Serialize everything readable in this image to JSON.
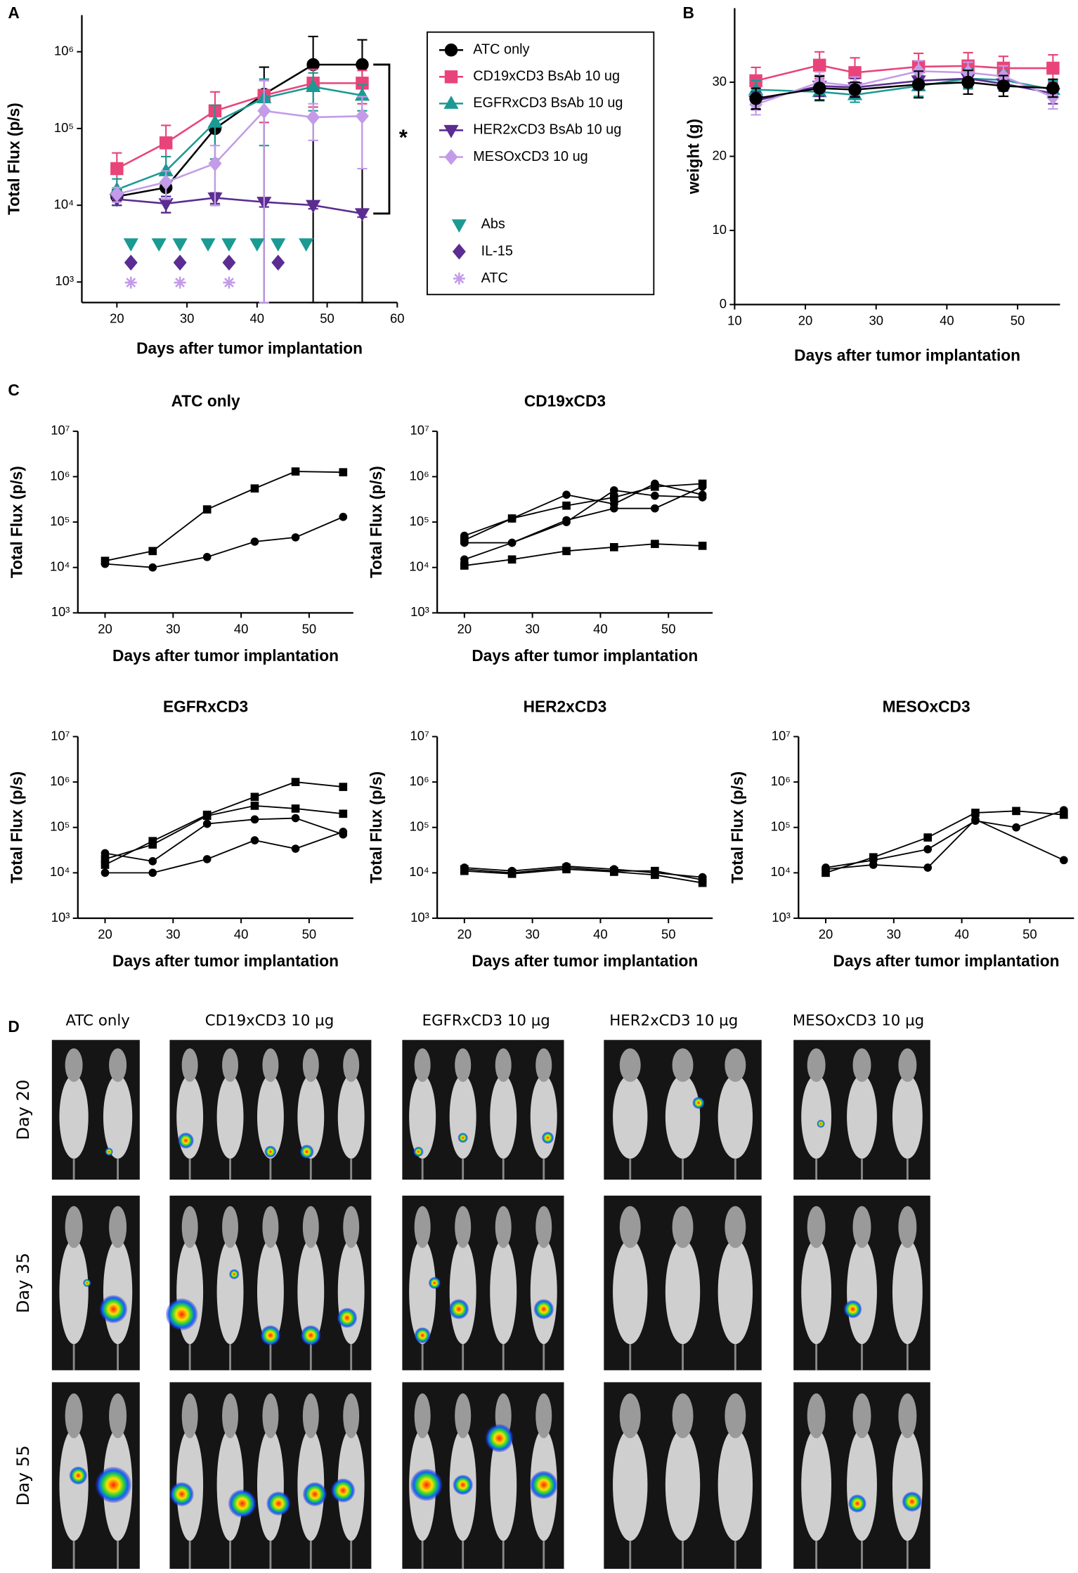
{
  "chart_data": [
    {
      "panel": "A",
      "type": "line",
      "x_label": "Days after tumor implantation",
      "y_label": "Total Flux (p/s)",
      "log_y": true,
      "xlim": [
        15,
        60
      ],
      "xticks": [
        20,
        30,
        40,
        50,
        60
      ],
      "ylim": [
        540,
        3000000
      ],
      "yticks": [
        {
          "value": 1000,
          "label": "10³"
        },
        {
          "value": 10000,
          "label": "10⁴"
        },
        {
          "value": 100000,
          "label": "10⁵"
        },
        {
          "value": 1000000,
          "label": "10⁶"
        }
      ],
      "annotation": "*",
      "legend": "right",
      "series": [
        {
          "name": "ATC only",
          "color": "#000000",
          "marker": "circle",
          "x": [
            20,
            27,
            34,
            41,
            48,
            55
          ],
          "values": [
            13000,
            17000,
            100000,
            280000,
            680000,
            680000
          ],
          "errors": [
            3000,
            9000,
            90000,
            350000,
            900000,
            750000
          ]
        },
        {
          "name": "CD19xCD3 BsAb 10 ug",
          "color": "#e8447a",
          "marker": "square",
          "x": [
            20,
            27,
            34,
            41,
            48,
            55
          ],
          "values": [
            30000,
            65000,
            170000,
            270000,
            390000,
            390000
          ],
          "errors": [
            18000,
            45000,
            130000,
            150000,
            200000,
            180000
          ]
        },
        {
          "name": "EGFRxCD3 BsAb 10 ug",
          "color": "#1a9a93",
          "marker": "triangle-up",
          "x": [
            20,
            27,
            34,
            41,
            48,
            55
          ],
          "values": [
            16000,
            28000,
            120000,
            250000,
            350000,
            270000
          ],
          "errors": [
            6000,
            15000,
            80000,
            190000,
            180000,
            100000
          ]
        },
        {
          "name": "HER2xCD3 BsAb 10 ug",
          "color": "#5b2c91",
          "marker": "triangle-down",
          "x": [
            20,
            27,
            34,
            41,
            48,
            55
          ],
          "values": [
            12000,
            10500,
            12500,
            11000,
            10000,
            7800
          ],
          "errors": [
            2000,
            2500,
            2000,
            1500,
            1000,
            800
          ]
        },
        {
          "name": "MESOxCD3 10 ug",
          "color": "#c39be8",
          "marker": "diamond",
          "x": [
            20,
            27,
            34,
            41,
            48,
            55
          ],
          "values": [
            14000,
            20000,
            35000,
            170000,
            140000,
            145000
          ],
          "errors": [
            3000,
            8000,
            25000,
            250000,
            70000,
            115000
          ]
        }
      ],
      "treatments": [
        {
          "name": "Abs",
          "color": "#1a9a93",
          "marker": "triangle-down",
          "x": [
            22,
            26,
            29,
            33,
            36,
            40,
            43,
            47
          ]
        },
        {
          "name": "IL-15",
          "color": "#5b2c91",
          "marker": "diamond",
          "x": [
            22,
            29,
            36,
            43
          ]
        },
        {
          "name": "ATC",
          "color": "#c39be8",
          "marker": "asterisk",
          "x": [
            22,
            29,
            36
          ]
        }
      ]
    },
    {
      "panel": "B",
      "type": "line",
      "x_label": "Days after tumor implantation",
      "y_label": "weight (g)",
      "xlim": [
        10,
        56
      ],
      "xticks": [
        10,
        20,
        30,
        40,
        50
      ],
      "ylim": [
        0,
        40
      ],
      "yticks": [
        0,
        10,
        20,
        30
      ],
      "series": [
        {
          "color": "#e8447a",
          "marker": "square",
          "x": [
            13,
            22,
            27,
            36,
            43,
            48,
            55
          ],
          "values": [
            30.2,
            32.3,
            31.3,
            32.1,
            32.2,
            31.9,
            31.9
          ],
          "errors": [
            1.8,
            1.8,
            2,
            1.8,
            1.8,
            1.6,
            1.8
          ]
        },
        {
          "color": "#1a9a93",
          "marker": "triangle-up",
          "x": [
            13,
            22,
            27,
            36,
            43,
            48,
            55
          ],
          "values": [
            29,
            28.7,
            28.3,
            29.5,
            30.5,
            30.3,
            29
          ],
          "errors": [
            1.2,
            1.2,
            1,
            1.4,
            1.4,
            1.2,
            1.2
          ]
        },
        {
          "color": "#5b2c91",
          "marker": "triangle-down",
          "x": [
            13,
            22,
            27,
            36,
            43,
            48,
            55
          ],
          "values": [
            27.5,
            29.5,
            29.3,
            30.2,
            30.5,
            29.8,
            28.5
          ],
          "errors": [
            1.2,
            1.4,
            1.2,
            1.2,
            1.2,
            1,
            1.4
          ]
        },
        {
          "color": "#c39be8",
          "marker": "diamond",
          "x": [
            13,
            22,
            27,
            36,
            43,
            48,
            55
          ],
          "values": [
            27,
            30,
            29.5,
            31.5,
            31.3,
            30.8,
            28
          ],
          "errors": [
            1.4,
            1.4,
            1.2,
            1.4,
            1.4,
            1.4,
            1.6
          ]
        },
        {
          "color": "#000000",
          "marker": "circle",
          "x": [
            13,
            22,
            27,
            36,
            43,
            48,
            55
          ],
          "values": [
            27.8,
            29.2,
            29,
            29.7,
            30,
            29.5,
            29.2
          ],
          "errors": [
            1.4,
            1.6,
            1,
            1.8,
            1.6,
            1.4,
            1.2
          ]
        }
      ]
    },
    {
      "panel": "C",
      "type": "line",
      "title": "ATC only",
      "x_label": "Days after tumor implantation",
      "y_label": "Total Flux (p/s)",
      "log_y": true,
      "color": "#000000",
      "xlim": [
        16,
        56.5
      ],
      "xticks": [
        20,
        30,
        40,
        50
      ],
      "ylim": [
        1000,
        10000000
      ],
      "yticks": [
        {
          "value": 1000,
          "label": "10³"
        },
        {
          "value": 10000,
          "label": "10⁴"
        },
        {
          "value": 100000,
          "label": "10⁵"
        },
        {
          "value": 1000000,
          "label": "10⁶"
        },
        {
          "value": 10000000,
          "label": "10⁷"
        }
      ],
      "series": [
        {
          "marker": "square",
          "x": [
            20,
            27,
            35,
            42,
            48,
            55
          ],
          "values": [
            14000,
            23000,
            190000,
            550000,
            1300000,
            1250000
          ]
        },
        {
          "marker": "circle",
          "x": [
            20,
            27,
            35,
            42,
            48,
            55
          ],
          "values": [
            12000,
            10000,
            17000,
            37000,
            46000,
            130000
          ]
        }
      ]
    },
    {
      "type": "line",
      "title": "CD19xCD3",
      "x_label": "Days after tumor implantation",
      "y_label": "Total Flux (p/s)",
      "log_y": true,
      "color": "#000000",
      "xlim": [
        16,
        56.5
      ],
      "xticks": [
        20,
        30,
        40,
        50
      ],
      "ylim": [
        1000,
        10000000
      ],
      "yticks": [
        {
          "value": 1000,
          "label": "10³"
        },
        {
          "value": 10000,
          "label": "10⁴"
        },
        {
          "value": 100000,
          "label": "10⁵"
        },
        {
          "value": 1000000,
          "label": "10⁶"
        },
        {
          "value": 10000000,
          "label": "10⁷"
        }
      ],
      "series": [
        {
          "marker": "square",
          "x": [
            20,
            27,
            35,
            42,
            48,
            55
          ],
          "values": [
            40000,
            120000,
            230000,
            350000,
            600000,
            700000
          ]
        },
        {
          "marker": "circle",
          "x": [
            20,
            27,
            35,
            42,
            48,
            55
          ],
          "values": [
            35000,
            35000,
            100000,
            500000,
            380000,
            350000
          ]
        },
        {
          "marker": "circle",
          "x": [
            20,
            27,
            35,
            42,
            48,
            55
          ],
          "values": [
            15000,
            35000,
            110000,
            200000,
            200000,
            600000
          ]
        },
        {
          "marker": "square",
          "x": [
            20,
            27,
            35,
            42,
            48,
            55
          ],
          "values": [
            11000,
            15000,
            23000,
            28000,
            33000,
            30000
          ]
        },
        {
          "marker": "circle",
          "x": [
            20,
            27,
            35,
            42,
            48,
            55
          ],
          "values": [
            50000,
            120000,
            400000,
            250000,
            700000,
            400000
          ]
        }
      ]
    },
    {
      "type": "line",
      "title": "EGFRxCD3",
      "x_label": "Days after tumor implantation",
      "y_label": "Total Flux (p/s)",
      "log_y": true,
      "color": "#000000",
      "xlim": [
        16,
        56.5
      ],
      "xticks": [
        20,
        30,
        40,
        50
      ],
      "ylim": [
        1000,
        10000000
      ],
      "yticks": [
        {
          "value": 1000,
          "label": "10³"
        },
        {
          "value": 10000,
          "label": "10⁴"
        },
        {
          "value": 100000,
          "label": "10⁵"
        },
        {
          "value": 1000000,
          "label": "10⁶"
        },
        {
          "value": 10000000,
          "label": "10⁷"
        }
      ],
      "series": [
        {
          "marker": "square",
          "x": [
            20,
            27,
            35,
            42,
            48,
            55
          ],
          "values": [
            15000,
            50000,
            190000,
            470000,
            1000000,
            780000
          ]
        },
        {
          "marker": "square",
          "x": [
            20,
            27,
            35,
            42,
            48,
            55
          ],
          "values": [
            20000,
            42000,
            180000,
            300000,
            260000,
            200000
          ]
        },
        {
          "marker": "circle",
          "x": [
            20,
            27,
            35,
            42,
            48,
            55
          ],
          "values": [
            27000,
            18000,
            120000,
            150000,
            160000,
            70000
          ]
        },
        {
          "marker": "circle",
          "x": [
            20,
            27,
            35,
            42,
            48,
            55
          ],
          "values": [
            10000,
            10000,
            20000,
            52000,
            34000,
            80000
          ]
        }
      ]
    },
    {
      "type": "line",
      "title": "HER2xCD3",
      "x_label": "Days after tumor implantation",
      "y_label": "Total Flux (p/s)",
      "log_y": true,
      "color": "#000000",
      "xlim": [
        16,
        56.5
      ],
      "xticks": [
        20,
        30,
        40,
        50
      ],
      "ylim": [
        1000,
        10000000
      ],
      "yticks": [
        {
          "value": 1000,
          "label": "10³"
        },
        {
          "value": 10000,
          "label": "10⁴"
        },
        {
          "value": 100000,
          "label": "10⁵"
        },
        {
          "value": 1000000,
          "label": "10⁶"
        },
        {
          "value": 10000000,
          "label": "10⁷"
        }
      ],
      "series": [
        {
          "marker": "circle",
          "x": [
            20,
            27,
            35,
            42,
            48,
            55
          ],
          "values": [
            13000,
            11000,
            14000,
            12000,
            10000,
            8000
          ]
        },
        {
          "marker": "square",
          "x": [
            20,
            27,
            35,
            42,
            48,
            55
          ],
          "values": [
            12000,
            10000,
            13000,
            11000,
            11000,
            7000
          ]
        },
        {
          "marker": "square",
          "x": [
            20,
            27,
            35,
            42,
            48,
            55
          ],
          "values": [
            11000,
            9500,
            12000,
            10500,
            9000,
            6000
          ]
        }
      ]
    },
    {
      "type": "line",
      "title": "MESOxCD3",
      "x_label": "Days after tumor implantation",
      "y_label": "Total Flux (p/s)",
      "log_y": true,
      "color": "#000000",
      "xlim": [
        16,
        56.5
      ],
      "xticks": [
        20,
        30,
        40,
        50
      ],
      "ylim": [
        1000,
        10000000
      ],
      "yticks": [
        {
          "value": 1000,
          "label": "10³"
        },
        {
          "value": 10000,
          "label": "10⁴"
        },
        {
          "value": 100000,
          "label": "10⁵"
        },
        {
          "value": 1000000,
          "label": "10⁶"
        },
        {
          "value": 10000000,
          "label": "10⁷"
        }
      ],
      "series": [
        {
          "marker": "square",
          "x": [
            20,
            27,
            35,
            42,
            48,
            55
          ],
          "values": [
            10000,
            22000,
            60000,
            210000,
            230000,
            190000
          ]
        },
        {
          "marker": "circle",
          "x": [
            20,
            27,
            35,
            42,
            48,
            55
          ],
          "values": [
            13000,
            19000,
            33000,
            140000,
            100000,
            240000
          ]
        },
        {
          "marker": "circle",
          "x": [
            20,
            27,
            35,
            42,
            55
          ],
          "values": [
            12000,
            15000,
            13000,
            150000,
            19000
          ]
        }
      ]
    }
  ],
  "panel_d": {
    "panel": "D",
    "columns": [
      "ATC only",
      "CD19xCD3 10 µg",
      "EGFRxCD3 10 µg",
      "HER2xCD3 10 µg",
      "MESOxCD3 10 µg"
    ],
    "rows": [
      "Day 20",
      "Day 35",
      "Day 55"
    ]
  }
}
